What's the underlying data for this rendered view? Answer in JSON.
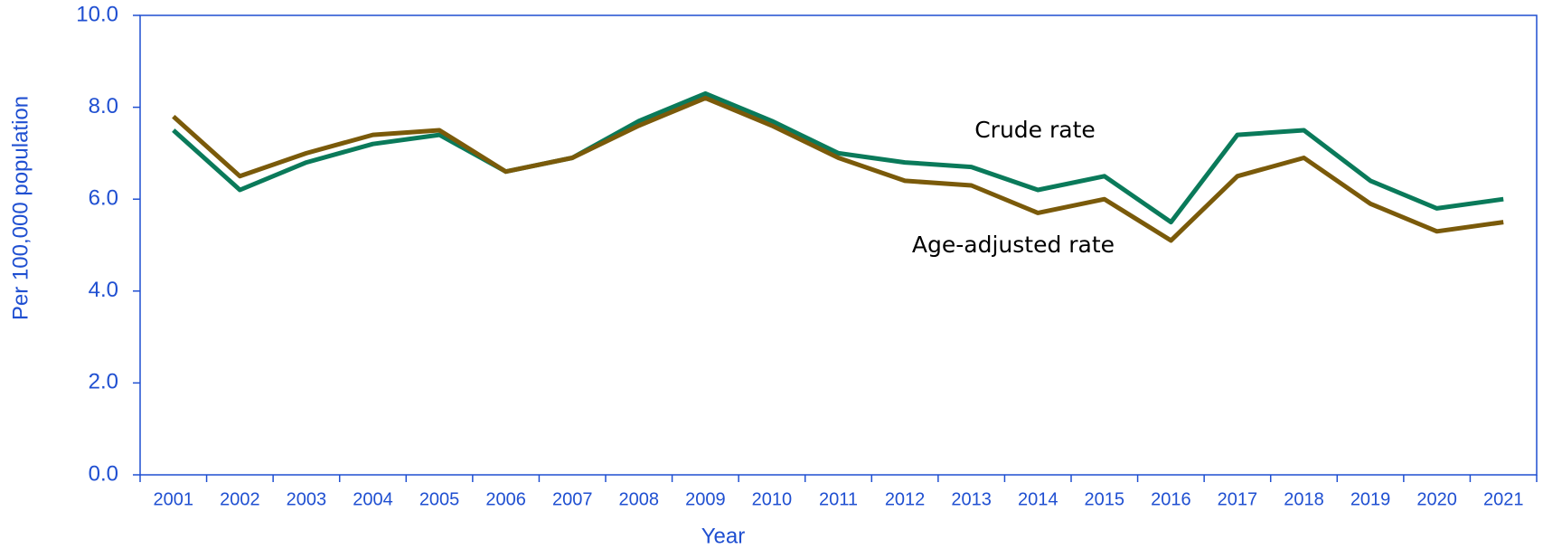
{
  "chart_data": {
    "type": "line",
    "x_label": "Year",
    "y_label": "Per 100,000 population",
    "categories": [
      "2001",
      "2002",
      "2003",
      "2004",
      "2005",
      "2006",
      "2007",
      "2008",
      "2009",
      "2010",
      "2011",
      "2012",
      "2013",
      "2014",
      "2015",
      "2016",
      "2017",
      "2018",
      "2019",
      "2020",
      "2021"
    ],
    "series": [
      {
        "name": "Crude rate",
        "color": "#0a7a5a",
        "values": [
          7.5,
          6.2,
          6.8,
          7.2,
          7.4,
          6.6,
          6.9,
          7.7,
          8.3,
          7.7,
          7.0,
          6.8,
          6.7,
          6.2,
          6.5,
          5.5,
          7.4,
          7.5,
          6.4,
          5.8,
          6.0
        ]
      },
      {
        "name": "Age-adjusted rate",
        "color": "#7a5a0a",
        "values": [
          7.8,
          6.5,
          7.0,
          7.4,
          7.5,
          6.6,
          6.9,
          7.6,
          8.2,
          7.6,
          6.9,
          6.4,
          6.3,
          5.7,
          6.0,
          5.1,
          6.5,
          6.9,
          5.9,
          5.3,
          5.5
        ]
      }
    ],
    "ylim": [
      0,
      10
    ],
    "yticks": [
      {
        "value": 0,
        "label": "0.0"
      },
      {
        "value": 2,
        "label": "2.0"
      },
      {
        "value": 4,
        "label": "4.0"
      },
      {
        "value": 6,
        "label": "6.0"
      },
      {
        "value": 8,
        "label": "8.0"
      },
      {
        "value": 10,
        "label": "10.0"
      }
    ]
  }
}
